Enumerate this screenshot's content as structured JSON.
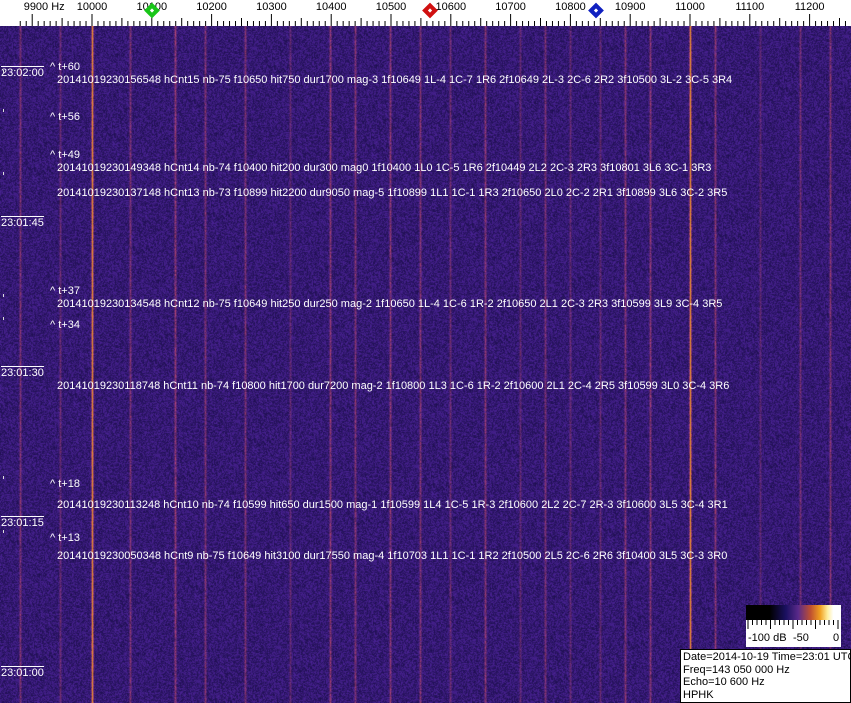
{
  "chart_data": {
    "type": "heatmap",
    "subtype": "waterfall-spectrogram",
    "x_axis": {
      "unit": "Hz",
      "range": [
        9880,
        11280
      ],
      "tick_labels": [
        "9900 Hz",
        "10000",
        "10100",
        "10200",
        "10300",
        "10400",
        "10500",
        "10600",
        "10700",
        "10800",
        "10900",
        "11000",
        "11100",
        "11200"
      ],
      "tick_values": [
        9900,
        10000,
        10100,
        10200,
        10300,
        10400,
        10500,
        10600,
        10700,
        10800,
        10900,
        11000,
        11100,
        11200
      ]
    },
    "y_axis": {
      "unit": "time UTC",
      "direction": "newest-top",
      "tick_labels": [
        "23:02:00",
        "23:01:45",
        "23:01:30",
        "23:01:15",
        "23:01:00"
      ],
      "tick_seconds": [
        120,
        105,
        90,
        75,
        60
      ]
    },
    "markers": [
      {
        "name": "green",
        "freq_hz": 10100,
        "color": "#19c619"
      },
      {
        "name": "red",
        "freq_hz": 10565,
        "color": "#d01010"
      },
      {
        "name": "blue",
        "freq_hz": 10843,
        "color": "#1020c0"
      }
    ],
    "carrier_lines_hz": [
      10000,
      11000
    ],
    "colormap": [
      "#000000",
      "#1a1060",
      "#5a2a8a",
      "#c05030",
      "#f0a020",
      "#fff0a0",
      "#ffffff"
    ],
    "color_scale": {
      "labels": [
        "-100 dB",
        "-50",
        "0"
      ],
      "range_db": [
        -100,
        0
      ]
    },
    "time_marks": [
      {
        "text": "^ t+60",
        "sec": 119.0
      },
      {
        "text": "^ t+56",
        "sec": 115.1
      },
      {
        "text": "^ t+49",
        "sec": 108.8
      },
      {
        "text": "^ t+37",
        "sec": 96.6
      },
      {
        "text": "^ t+34",
        "sec": 94.3
      },
      {
        "text": "^ t+18",
        "sec": 78.4
      },
      {
        "text": "^ t+13",
        "sec": 73.0
      }
    ],
    "detections": [
      {
        "sec": 119.0,
        "text": "20141019230156548 hCnt15 nb-75 f10650 hit750 dur1700 mag-3 1f10649 1L-4 1C-7 1R6 2f10649 2L-3 2C-6 2R2 3f10500 3L-2 3C-5 3R4"
      },
      {
        "sec": 110.2,
        "text": "20141019230149348 hCnt14 nb-74 f10400 hit200 dur300 mag0 1f10400 1L0 1C-5 1R6 2f10449 2L2 2C-3 2R3 3f10801 3L6 3C-1 3R3"
      },
      {
        "sec": 107.7,
        "text": "20141019230137148 hCnt13 nb-73 f10899 hit2200 dur9050 mag-5 1f10899 1L1 1C-1 1R3 2f10650 2L0 2C-2 2R1 3f10899 3L6 3C-2 3R5"
      },
      {
        "sec": 96.6,
        "text": "20141019230134548 hCnt12 nb-75 f10649 hit250 dur250 mag-2 1f10650 1L-4 1C-6 1R-2 2f10650 2L1 2C-3 2R3 3f10599 3L9 3C-4 3R5"
      },
      {
        "sec": 88.4,
        "text": "20141019230118748 hCnt11 nb-74 f10800 hit1700 dur7200 mag-2 1f10800 1L3 1C-6 1R-2 2f10600 2L1 2C-4 2R5 3f10599 3L0 3C-4 3R6"
      },
      {
        "sec": 76.5,
        "text": "20141019230113248 hCnt10 nb-74 f10599 hit650 dur1500 mag-1 1f10599 1L4 1C-5 1R-3 2f10600 2L2 2C-7 2R-3 3f10600 3L5 3C-4 3R1"
      },
      {
        "sec": 71.4,
        "text": "20141019230050348 hCnt9 nb-75 f10649 hit3100 dur17550 mag-4 1f10703 1L1 1C-1 1R2 2f10500 2L5 2C-6 2R6 3f10400 3L5 3C-3 3R0"
      }
    ]
  },
  "info": {
    "date_time": "Date=2014-10-19 Time=23:01 UTC",
    "freq": "Freq=143 050 000 Hz",
    "echo": "Echo=10 600 Hz",
    "station": "HPHK"
  }
}
